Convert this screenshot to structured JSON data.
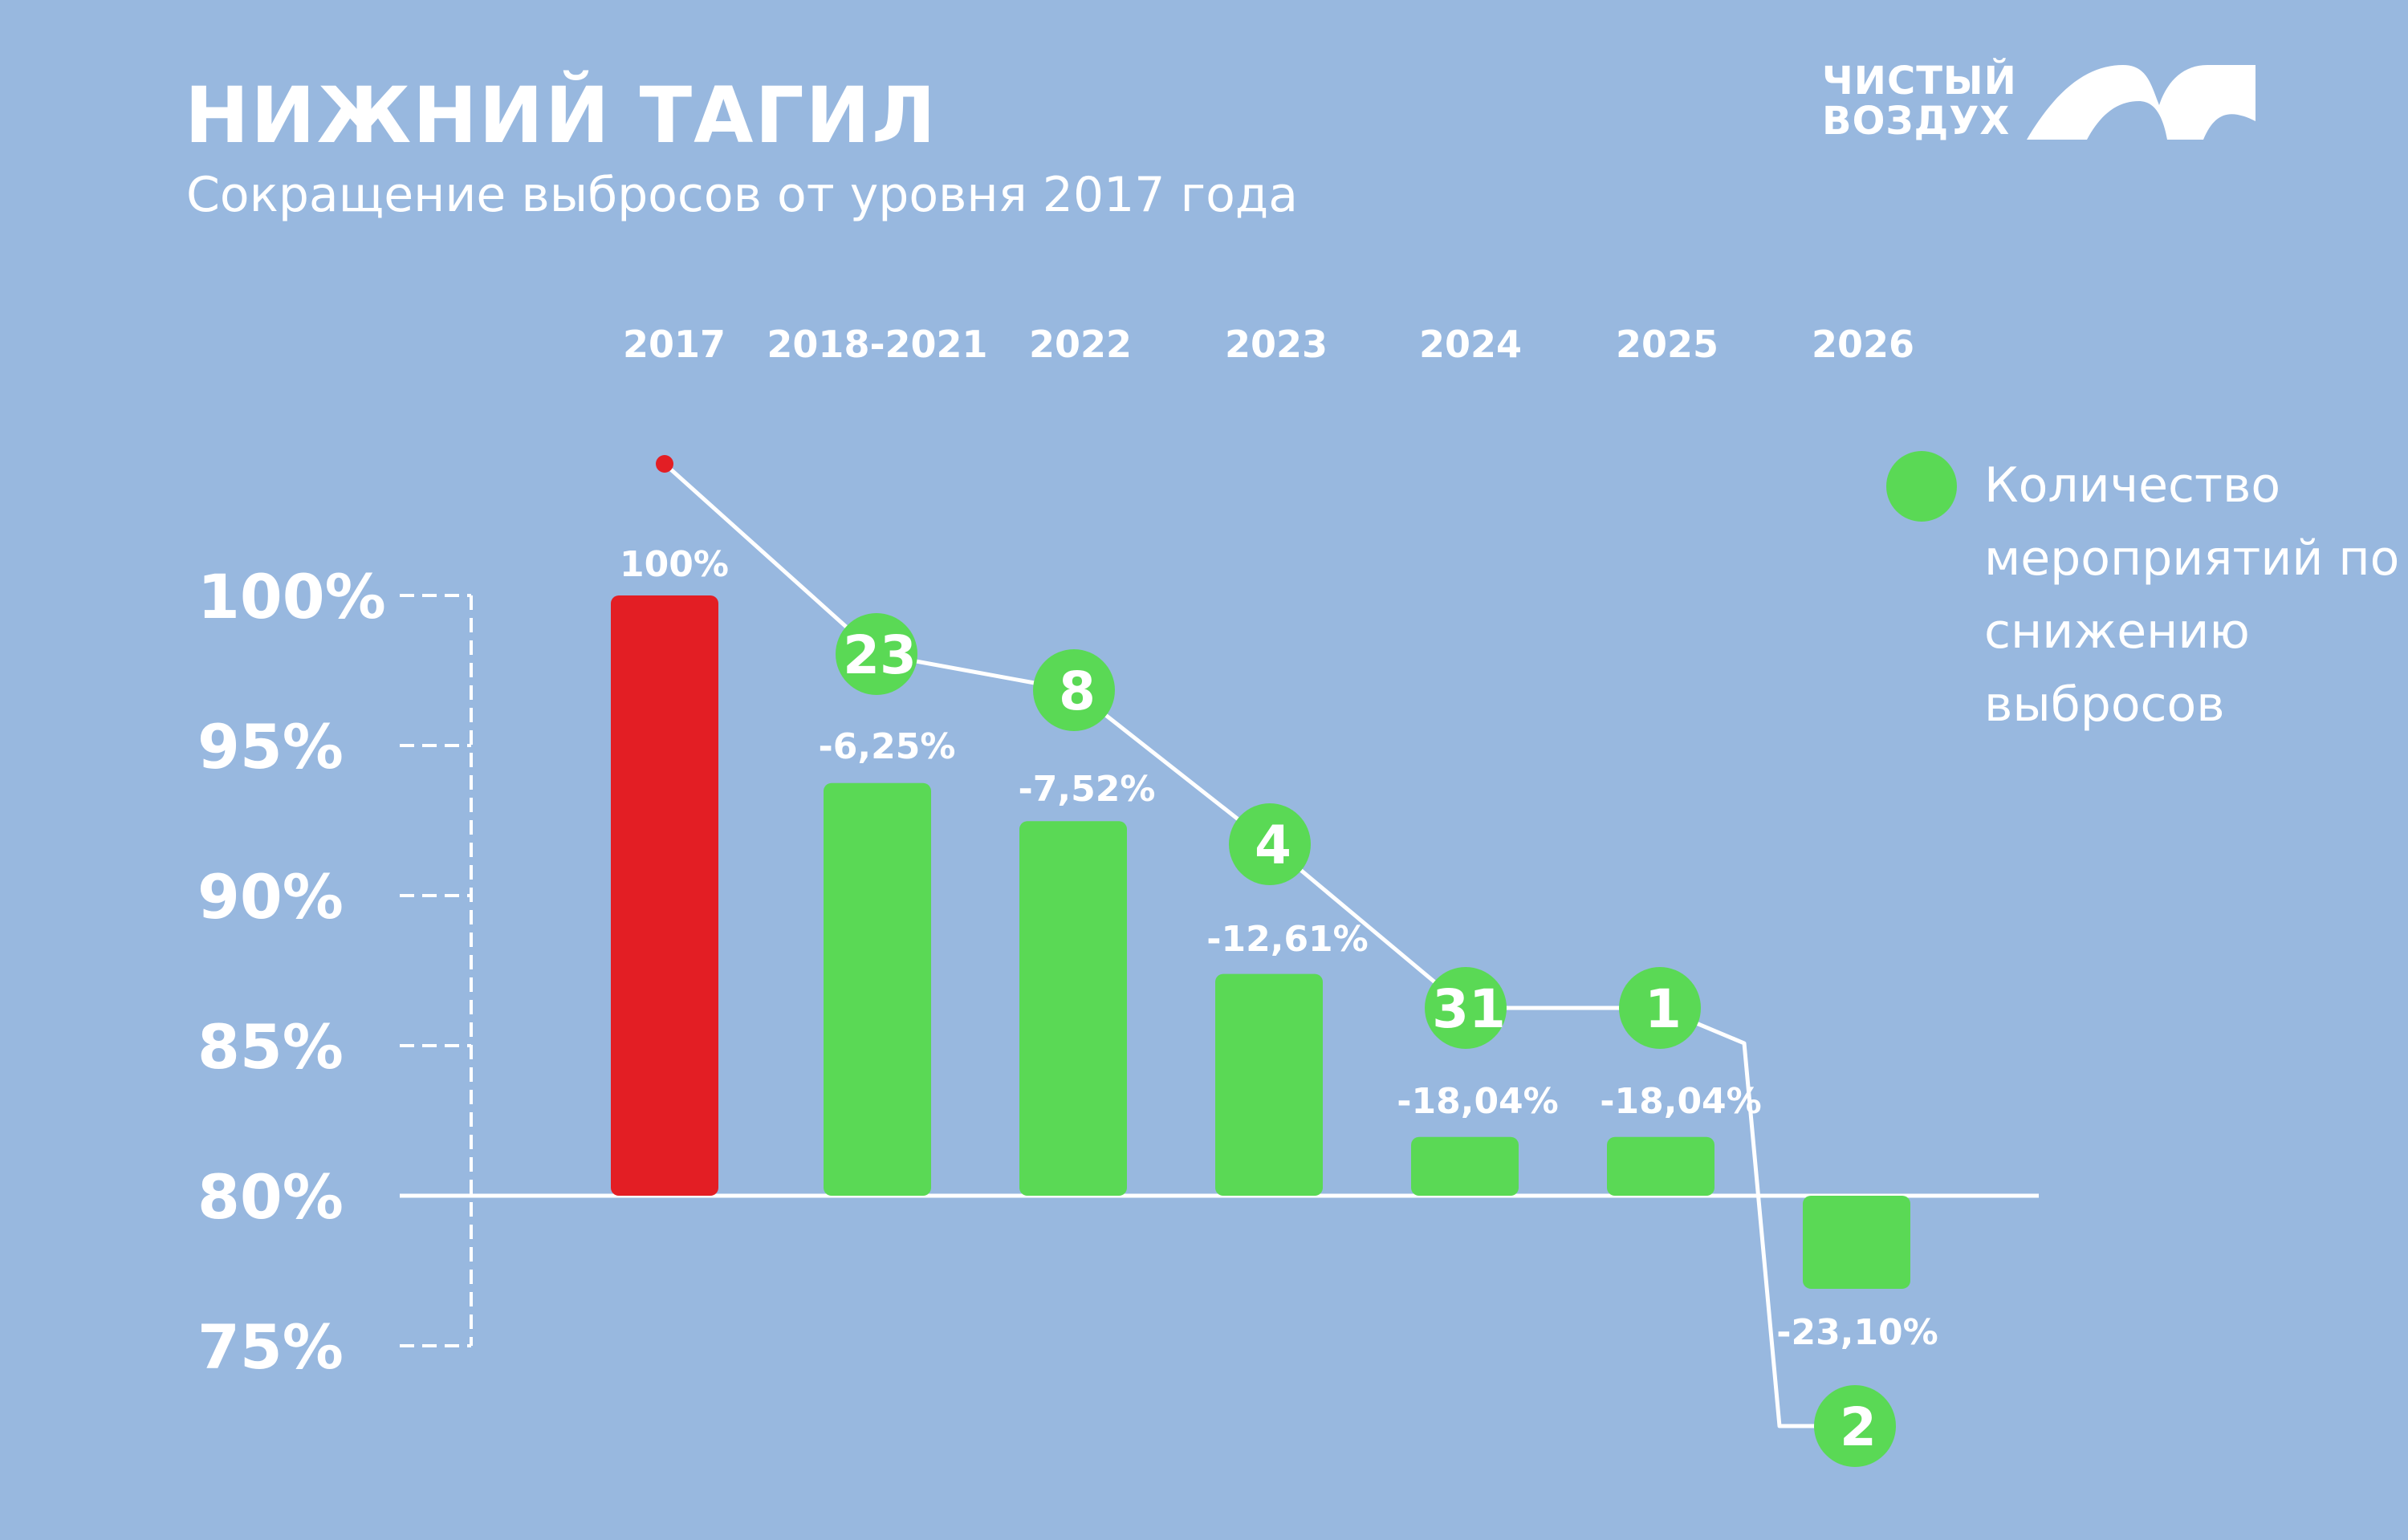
{
  "header": {
    "title": "НИЖНИЙ ТАГИЛ",
    "subtitle": "Сокращение выбросов от уровня 2017 года"
  },
  "logo": {
    "line1": "ЧИСТЫЙ",
    "line2": "ВОЗДУХ"
  },
  "legend": {
    "label": "Количество мероприятий по снижению выбросов"
  },
  "colors": {
    "background": "#98b8df",
    "base_bar": "#e31e24",
    "reduction_bar": "#5ad955",
    "marker": "#5ad955",
    "text": "#ffffff"
  },
  "chart_data": {
    "type": "bar",
    "categories": [
      "2017",
      "2018-2021",
      "2022",
      "2023",
      "2024",
      "2025",
      "2026"
    ],
    "values": [
      100,
      93.75,
      92.48,
      87.39,
      81.96,
      81.96,
      76.9
    ],
    "data_labels": [
      "100%",
      "-6,25%",
      "-7,52%",
      "-12,61%",
      "-18,04%",
      "-18,04%",
      "-23,10%"
    ],
    "measures": [
      null,
      23,
      8,
      4,
      31,
      1,
      2
    ],
    "y_ticks": [
      100,
      95,
      90,
      85,
      80,
      75
    ],
    "y_tick_labels": [
      "100%",
      "95%",
      "90%",
      "85%",
      "80%",
      "75%"
    ],
    "ylim": [
      75,
      100
    ],
    "baseline": 80,
    "legend_position": "right"
  }
}
